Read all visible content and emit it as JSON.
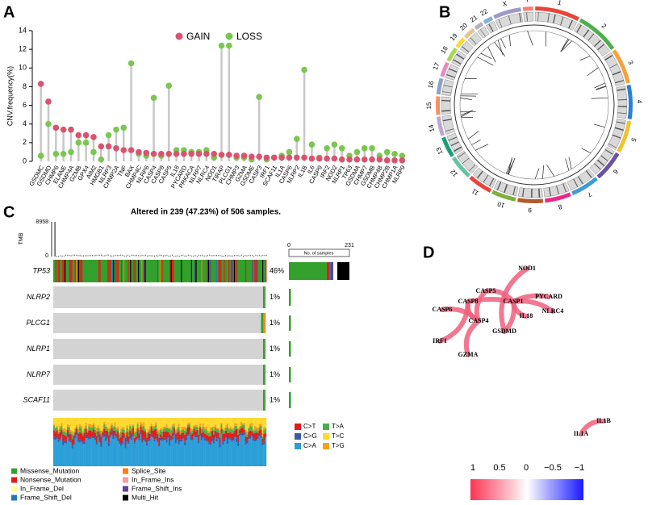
{
  "panel_labels": [
    "A",
    "B",
    "C",
    "D"
  ],
  "chart_data": {
    "type": "lollipop",
    "y_label": "CNV.frequency(%)",
    "categories": [
      "GSDMC",
      "GSDMD",
      "CHMP6",
      "ELANE",
      "CHMP4A",
      "GZMB",
      "GPX4",
      "AIM2",
      "HMGB1",
      "NLRP3",
      "CHMP2A",
      "TNF",
      "BAX",
      "CHMP4C",
      "NLRP6",
      "CASP4",
      "CASP8",
      "CASP5",
      "IL18",
      "PYCARD",
      "PRKACA",
      "NLRP7",
      "NLRC4",
      "NOD1",
      "TIRAP",
      "PLCG1",
      "CHMP3",
      "GZMA",
      "GSDME",
      "CASP3",
      "IRF1",
      "SCAF11",
      "IL1A",
      "CASP6",
      "NLRP2",
      "IL1B",
      "IL6",
      "CASP9",
      "IRF2",
      "NOD2",
      "NLRP1",
      "TP63",
      "GSDMA",
      "CHMP7",
      "GSDMB",
      "CHMP4B",
      "CHMP2B",
      "CHMP1A",
      "NLRP9"
    ],
    "series": [
      {
        "name": "GAIN",
        "color": "#d9536f",
        "values": [
          8.3,
          6.4,
          3.6,
          3.4,
          3.4,
          2.8,
          2.8,
          2.6,
          1.6,
          1.6,
          1.4,
          1.2,
          1.2,
          1.0,
          0.9,
          0.8,
          0.8,
          0.8,
          0.8,
          0.8,
          0.8,
          0.8,
          0.8,
          0.8,
          0.7,
          0.7,
          0.6,
          0.6,
          0.5,
          0.5,
          0.4,
          0.4,
          0.4,
          0.4,
          0.4,
          0.4,
          0.3,
          0.3,
          0.3,
          0.3,
          0.2,
          0.2,
          0.2,
          0.2,
          0.2,
          0.2,
          0.1,
          0.1,
          0.1
        ]
      },
      {
        "name": "LOSS",
        "color": "#7ac74f",
        "values": [
          0.6,
          4.0,
          0.8,
          0.8,
          1.0,
          2.0,
          2.0,
          1.0,
          0.2,
          2.8,
          3.4,
          3.6,
          10.5,
          0.8,
          0.6,
          6.8,
          0.6,
          8.1,
          1.2,
          1.2,
          1.0,
          1.0,
          1.2,
          0.4,
          12.4,
          12.4,
          0.4,
          0.4,
          0.2,
          6.9,
          0.2,
          0.4,
          0.6,
          1.0,
          2.4,
          9.8,
          1.8,
          0.4,
          1.4,
          1.8,
          1.4,
          0.6,
          1.0,
          1.4,
          1.4,
          0.6,
          1.0,
          0.8,
          0.6
        ]
      }
    ],
    "ylim": [
      0,
      14
    ],
    "yticks": [
      0,
      2,
      4,
      6,
      8,
      10,
      12,
      14
    ]
  },
  "circos": {
    "chromosomes": [
      "1",
      "2",
      "3",
      "4",
      "5",
      "6",
      "7",
      "8",
      "9",
      "10",
      "11",
      "12",
      "13",
      "14",
      "15",
      "16",
      "17",
      "18",
      "19",
      "20",
      "21",
      "22",
      "X",
      "Y"
    ]
  },
  "oncoplot": {
    "title": "Altered in 239 (47.23%) of 506 samples.",
    "tmb_label": "TMB",
    "tmb_ticks": [
      "8958",
      "0"
    ],
    "genes": [
      {
        "name": "TP53",
        "percent": "46%"
      },
      {
        "name": "NLRP2",
        "percent": "1%"
      },
      {
        "name": "PLCG1",
        "percent": "1%"
      },
      {
        "name": "NLRP1",
        "percent": "1%"
      },
      {
        "name": "NLRP7",
        "percent": "1%"
      },
      {
        "name": "SCAF11",
        "percent": "1%"
      }
    ],
    "samples_axis": {
      "label": "No. of samples",
      "ticks": [
        "0",
        "231"
      ]
    },
    "titv_legend": [
      {
        "name": "C>T",
        "color": "#e41a1c"
      },
      {
        "name": "C>G",
        "color": "#3c5aa8"
      },
      {
        "name": "C>A",
        "color": "#2b9fd8"
      },
      {
        "name": "T>A",
        "color": "#4daf4a"
      },
      {
        "name": "T>C",
        "color": "#ffd92f"
      },
      {
        "name": "T>G",
        "color": "#f7a11a"
      }
    ],
    "variant_legend": [
      {
        "name": "Missense_Mutation",
        "color": "#33a02c"
      },
      {
        "name": "Nonsense_Mutation",
        "color": "#e31a1c"
      },
      {
        "name": "In_Frame_Del",
        "color": "#ffff99"
      },
      {
        "name": "Frame_Shift_Del",
        "color": "#1f78b4"
      },
      {
        "name": "Splice_Site",
        "color": "#ff7f00"
      },
      {
        "name": "In_Frame_Ins",
        "color": "#fb9a99"
      },
      {
        "name": "Frame_Shift_Ins",
        "color": "#6a3d9a"
      },
      {
        "name": "Multi_Hit",
        "color": "#000000"
      }
    ]
  },
  "network": {
    "nodes": [
      "NOD1",
      "CASP5",
      "PYCARD",
      "CASP8",
      "CASP1",
      "NLRC4",
      "CASP6",
      "IL18",
      "CASP4",
      "GSDMD",
      "IRF1",
      "GZMA",
      "IL1B",
      "IL1A"
    ],
    "colorbar_ticks": [
      "1",
      "0.5",
      "0",
      "−0.5",
      "−1"
    ]
  }
}
